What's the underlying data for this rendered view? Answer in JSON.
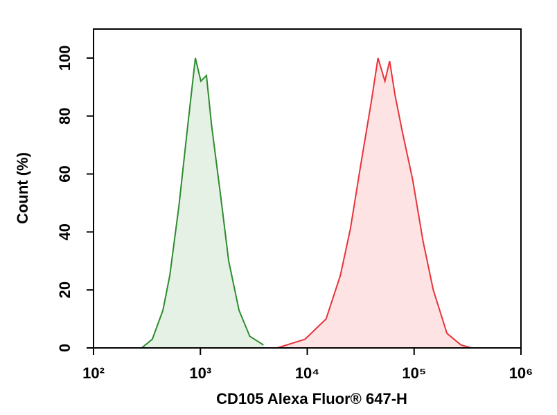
{
  "chart_data": {
    "type": "histogram-overlay",
    "x_label": "CD105 Alexa Fluor® 647-H",
    "y_label": "Count (%)",
    "xlim": [
      100,
      1000000
    ],
    "xlog": true,
    "xticks": [
      {
        "value": 100,
        "label": "10²"
      },
      {
        "value": 1000,
        "label": "10³"
      },
      {
        "value": 10000,
        "label": "10⁴"
      },
      {
        "value": 100000,
        "label": "10⁵"
      },
      {
        "value": 1000000,
        "label": "10⁶"
      }
    ],
    "ylim": [
      0,
      110
    ],
    "yticks": [
      0,
      20,
      40,
      60,
      80,
      100
    ],
    "series": [
      {
        "color": "#2e8b2e",
        "fill": "#e4f1e4",
        "x": [
          282,
          355,
          446,
          517,
          630,
          753,
          898,
          1010,
          1140,
          1270,
          1540,
          1840,
          2300,
          2900,
          3900
        ],
        "values": [
          0,
          3,
          13,
          25,
          49,
          75,
          100,
          92,
          94,
          77,
          53,
          30,
          13,
          4,
          1
        ]
      },
      {
        "color": "#e8323a",
        "fill": "#fde3e3",
        "x": [
          5250,
          9550,
          15000,
          20400,
          25300,
          31600,
          39800,
          45900,
          53300,
          59000,
          66500,
          77200,
          97000,
          121000,
          151000,
          203000,
          275000,
          345000
        ],
        "values": [
          0,
          3,
          10,
          25,
          41,
          63,
          85,
          100,
          92,
          99,
          87,
          75,
          58,
          37,
          20,
          5,
          1,
          0
        ]
      }
    ]
  }
}
